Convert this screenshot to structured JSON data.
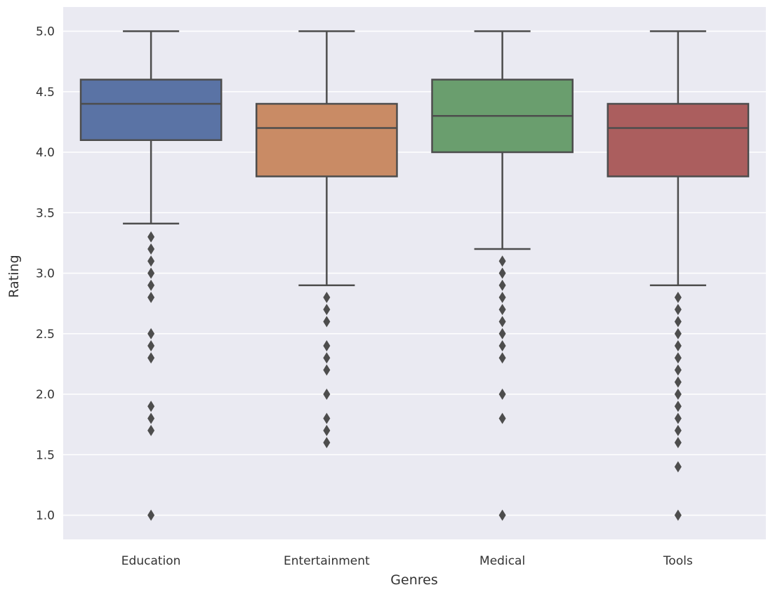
{
  "chart_data": {
    "type": "box",
    "title": "",
    "xlabel": "Genres",
    "ylabel": "Rating",
    "ylim": [
      0.8,
      5.2
    ],
    "yticks": [
      1.0,
      1.5,
      2.0,
      2.5,
      3.0,
      3.5,
      4.0,
      4.5,
      5.0
    ],
    "ytick_labels": [
      "1.0",
      "1.5",
      "2.0",
      "2.5",
      "3.0",
      "3.5",
      "4.0",
      "4.5",
      "5.0"
    ],
    "grid": true,
    "background": "#eaeaf2",
    "grid_color": "#ffffff",
    "line_color": "#4d4d4d",
    "categories": [
      "Education",
      "Entertainment",
      "Medical",
      "Tools"
    ],
    "boxes": [
      {
        "category": "Education",
        "color": "#5a73a5",
        "whisker_low": 3.41,
        "q1": 4.1,
        "median": 4.4,
        "q3": 4.6,
        "whisker_high": 5.0,
        "outliers": [
          3.3,
          3.2,
          3.1,
          3.0,
          2.9,
          2.8,
          2.5,
          2.4,
          2.3,
          1.9,
          1.8,
          1.7,
          1.0
        ]
      },
      {
        "category": "Entertainment",
        "color": "#c98b65",
        "whisker_low": 2.9,
        "q1": 3.8,
        "median": 4.2,
        "q3": 4.4,
        "whisker_high": 5.0,
        "outliers": [
          2.8,
          2.7,
          2.6,
          2.4,
          2.3,
          2.2,
          2.0,
          1.8,
          1.7,
          1.6
        ]
      },
      {
        "category": "Medical",
        "color": "#6a9e6e",
        "whisker_low": 3.2,
        "q1": 4.0,
        "median": 4.3,
        "q3": 4.6,
        "whisker_high": 5.0,
        "outliers": [
          3.1,
          3.0,
          2.9,
          2.8,
          2.7,
          2.6,
          2.5,
          2.4,
          2.3,
          2.0,
          1.8,
          1.0
        ]
      },
      {
        "category": "Tools",
        "color": "#ab5e5e",
        "whisker_low": 2.9,
        "q1": 3.8,
        "median": 4.2,
        "q3": 4.4,
        "whisker_high": 5.0,
        "outliers": [
          2.8,
          2.7,
          2.6,
          2.5,
          2.4,
          2.3,
          2.2,
          2.1,
          2.0,
          1.9,
          1.8,
          1.7,
          1.6,
          1.4,
          1.0
        ]
      }
    ]
  }
}
